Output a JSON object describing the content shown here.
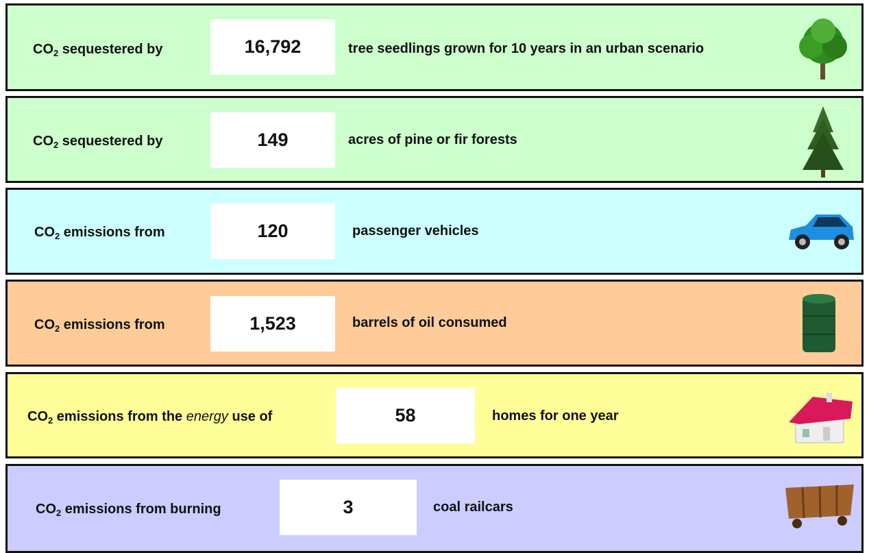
{
  "rows": [
    {
      "label": [
        "CO",
        "2",
        " sequestered by"
      ],
      "value": "16,792",
      "description": "tree seedlings grown for 10 years in an urban scenario"
    },
    {
      "label": [
        "CO",
        "2",
        " sequestered by"
      ],
      "value": "149",
      "description": "acres of pine or fir forests"
    },
    {
      "label": [
        "CO",
        "2",
        " emissions from"
      ],
      "value": "120",
      "description": "passenger vehicles"
    },
    {
      "label": [
        "CO",
        "2",
        " emissions from"
      ],
      "value": "1,523",
      "description": "barrels of oil consumed"
    },
    {
      "label": [
        "CO",
        "2",
        " emissions from the ",
        "energy",
        " use of"
      ],
      "value": "58",
      "description": "homes for one year"
    },
    {
      "label": [
        "CO",
        "2",
        " emissions from burning"
      ],
      "value": "3",
      "description": "coal railcars"
    }
  ]
}
